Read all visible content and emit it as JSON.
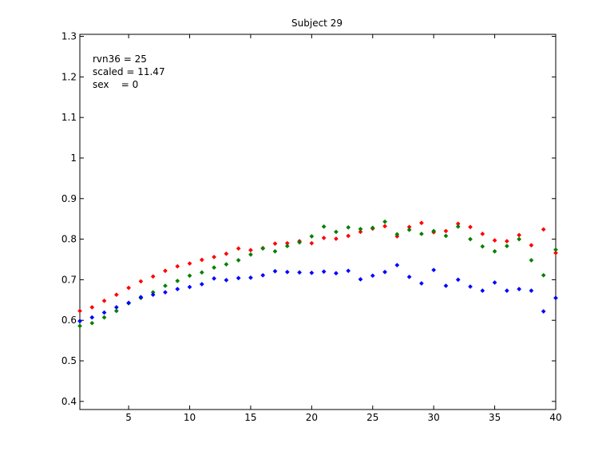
{
  "chart_data": {
    "type": "scatter",
    "title": "Subject 29",
    "xlabel": "",
    "ylabel": "",
    "xlim": [
      1,
      40
    ],
    "ylim": [
      0.38,
      1.305
    ],
    "xticks": [
      "5",
      "10",
      "15",
      "20",
      "25",
      "30",
      "35",
      "40"
    ],
    "xtick_values": [
      5,
      10,
      15,
      20,
      25,
      30,
      35,
      40
    ],
    "yticks": [
      "0.4",
      "0.5",
      "0.6",
      "0.7",
      "0.8",
      "0.9",
      "1",
      "1.1",
      "1.2",
      "1.3"
    ],
    "ytick_values": [
      0.4,
      0.5,
      0.6,
      0.7,
      0.8,
      0.9,
      1.0,
      1.1,
      1.2,
      1.3
    ],
    "grid": false,
    "annotations": [
      "rvn36 = 25",
      "scaled = 11.47",
      "sex    = 0"
    ],
    "x": [
      1,
      2,
      3,
      4,
      5,
      6,
      7,
      8,
      9,
      10,
      11,
      12,
      13,
      14,
      15,
      16,
      17,
      18,
      19,
      20,
      21,
      22,
      23,
      24,
      25,
      26,
      27,
      28,
      29,
      30,
      31,
      32,
      33,
      34,
      35,
      36,
      37,
      38,
      39,
      40
    ],
    "series": [
      {
        "color": "#ff0000",
        "values": [
          0.623,
          0.632,
          0.648,
          0.663,
          0.68,
          0.696,
          0.708,
          0.722,
          0.733,
          0.74,
          0.749,
          0.756,
          0.764,
          0.777,
          0.773,
          0.778,
          0.789,
          0.79,
          0.795,
          0.79,
          0.803,
          0.801,
          0.808,
          0.818,
          0.826,
          0.832,
          0.807,
          0.83,
          0.84,
          0.817,
          0.82,
          0.838,
          0.83,
          0.813,
          0.797,
          0.795,
          0.81,
          0.785,
          0.824,
          0.766
        ]
      },
      {
        "color": "#008000",
        "values": [
          0.586,
          0.593,
          0.607,
          0.623,
          0.642,
          0.655,
          0.669,
          0.685,
          0.697,
          0.71,
          0.718,
          0.73,
          0.738,
          0.748,
          0.762,
          0.777,
          0.77,
          0.783,
          0.792,
          0.807,
          0.831,
          0.818,
          0.829,
          0.825,
          0.828,
          0.843,
          0.812,
          0.823,
          0.813,
          0.82,
          0.808,
          0.831,
          0.8,
          0.782,
          0.77,
          0.783,
          0.8,
          0.748,
          0.711,
          0.774
        ]
      },
      {
        "color": "#0000ff",
        "values": [
          0.598,
          0.607,
          0.619,
          0.632,
          0.643,
          0.657,
          0.663,
          0.669,
          0.677,
          0.682,
          0.689,
          0.703,
          0.699,
          0.704,
          0.705,
          0.711,
          0.721,
          0.719,
          0.718,
          0.717,
          0.72,
          0.716,
          0.722,
          0.701,
          0.71,
          0.719,
          0.736,
          0.707,
          0.691,
          0.724,
          0.685,
          0.7,
          0.683,
          0.673,
          0.693,
          0.673,
          0.677,
          0.673,
          0.622,
          0.655
        ]
      }
    ]
  }
}
